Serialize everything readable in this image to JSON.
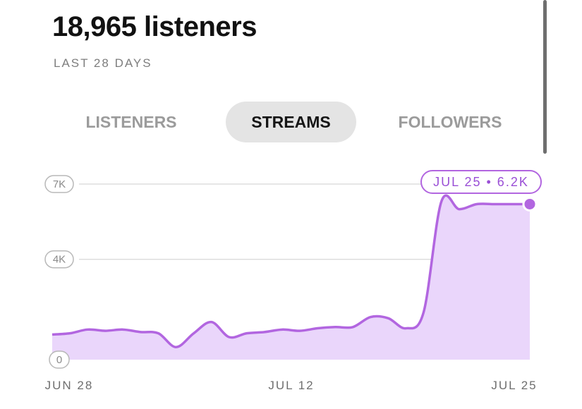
{
  "header": {
    "title": "18,965 listeners",
    "subtitle": "LAST 28 DAYS"
  },
  "tabs": [
    {
      "label": "LISTENERS",
      "active": false
    },
    {
      "label": "STREAMS",
      "active": true
    },
    {
      "label": "FOLLOWERS",
      "active": false
    }
  ],
  "colors": {
    "accent": "#b266e0",
    "area_fill": "#ead6fb",
    "active_tab_bg": "#e4e4e4"
  },
  "chart_data": {
    "type": "area",
    "y_ticks": [
      "0",
      "4K",
      "7K"
    ],
    "x_ticks": [
      "JUN 28",
      "JUL 12",
      "JUL 25"
    ],
    "ylim": [
      0,
      7000
    ],
    "grid": true,
    "x": [
      "Jun 28",
      "Jun 29",
      "Jun 30",
      "Jul 1",
      "Jul 2",
      "Jul 3",
      "Jul 4",
      "Jul 5",
      "Jul 6",
      "Jul 7",
      "Jul 8",
      "Jul 9",
      "Jul 10",
      "Jul 11",
      "Jul 12",
      "Jul 13",
      "Jul 14",
      "Jul 15",
      "Jul 16",
      "Jul 17",
      "Jul 18",
      "Jul 19",
      "Jul 20",
      "Jul 21",
      "Jul 22",
      "Jul 23",
      "Jul 24",
      "Jul 25"
    ],
    "values": [
      1000,
      1050,
      1200,
      1150,
      1200,
      1100,
      1050,
      500,
      1050,
      1500,
      900,
      1050,
      1100,
      1200,
      1150,
      1250,
      1300,
      1300,
      1700,
      1650,
      1250,
      1900,
      6300,
      6000,
      6200,
      6200,
      6200,
      6200
    ],
    "tooltip": "JUL 25 • 6.2K"
  }
}
